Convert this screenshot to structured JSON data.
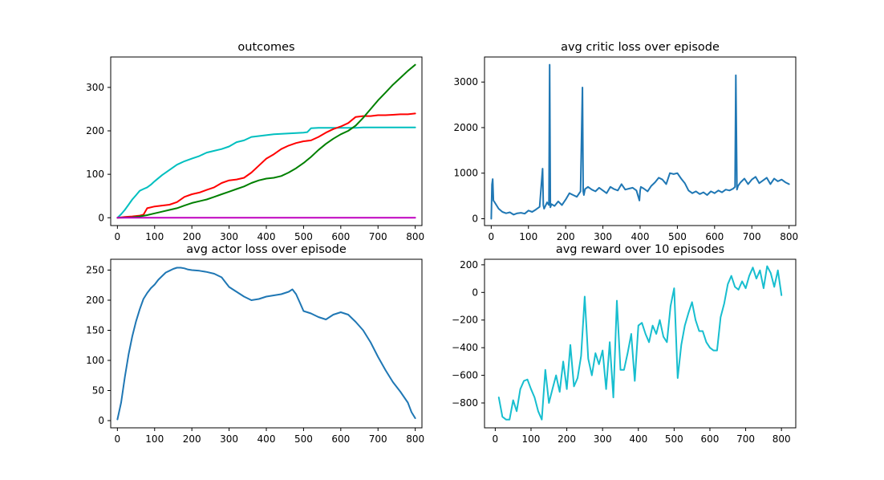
{
  "chart_data": [
    {
      "type": "line",
      "title": "outcomes",
      "xlim": [
        -18,
        818
      ],
      "ylim": [
        -18,
        370
      ],
      "xticks": [
        0,
        100,
        200,
        300,
        400,
        500,
        600,
        700,
        800
      ],
      "yticks": [
        0,
        100,
        200,
        300
      ],
      "series": [
        {
          "color": "#00bfbf",
          "x": [
            0,
            10,
            20,
            30,
            40,
            50,
            60,
            70,
            80,
            90,
            100,
            120,
            140,
            160,
            180,
            200,
            220,
            240,
            260,
            280,
            300,
            320,
            340,
            360,
            380,
            400,
            420,
            440,
            460,
            480,
            500,
            510,
            520,
            540,
            560,
            580,
            600,
            620,
            640,
            660,
            680,
            700,
            720,
            740,
            760,
            780,
            800
          ],
          "y": [
            0,
            8,
            18,
            30,
            42,
            52,
            62,
            66,
            70,
            76,
            84,
            98,
            110,
            122,
            130,
            136,
            142,
            150,
            154,
            158,
            164,
            174,
            178,
            186,
            188,
            190,
            192,
            193,
            194,
            195,
            196,
            197,
            206,
            207,
            207,
            207,
            207,
            207,
            207,
            208,
            208,
            208,
            208,
            208,
            208,
            208,
            208
          ]
        },
        {
          "color": "#ff0000",
          "x": [
            0,
            20,
            40,
            60,
            70,
            80,
            100,
            120,
            140,
            160,
            180,
            200,
            220,
            240,
            260,
            280,
            300,
            320,
            340,
            360,
            380,
            400,
            420,
            440,
            460,
            480,
            500,
            520,
            540,
            560,
            580,
            600,
            620,
            640,
            660,
            680,
            700,
            720,
            740,
            760,
            780,
            800
          ],
          "y": [
            0,
            2,
            3,
            5,
            7,
            22,
            26,
            28,
            30,
            36,
            48,
            54,
            58,
            64,
            70,
            80,
            86,
            88,
            92,
            104,
            120,
            136,
            146,
            158,
            166,
            172,
            176,
            178,
            186,
            196,
            204,
            210,
            218,
            232,
            234,
            234,
            236,
            236,
            237,
            238,
            238,
            240
          ]
        },
        {
          "color": "#008000",
          "x": [
            0,
            40,
            60,
            80,
            100,
            120,
            140,
            160,
            180,
            200,
            220,
            240,
            260,
            280,
            300,
            320,
            340,
            360,
            380,
            400,
            420,
            440,
            460,
            480,
            500,
            520,
            540,
            560,
            580,
            600,
            620,
            640,
            660,
            680,
            700,
            720,
            740,
            760,
            780,
            800
          ],
          "y": [
            0,
            1,
            3,
            6,
            10,
            14,
            18,
            22,
            28,
            34,
            38,
            42,
            48,
            54,
            60,
            66,
            72,
            80,
            86,
            90,
            92,
            96,
            104,
            114,
            126,
            140,
            156,
            170,
            182,
            192,
            200,
            212,
            230,
            250,
            270,
            288,
            306,
            322,
            338,
            352
          ]
        },
        {
          "color": "#bf00bf",
          "x": [
            0,
            800
          ],
          "y": [
            0,
            0
          ]
        }
      ]
    },
    {
      "type": "line",
      "title": "avg critic loss over episode",
      "xlim": [
        -18,
        818
      ],
      "ylim": [
        -150,
        3550
      ],
      "xticks": [
        0,
        100,
        200,
        300,
        400,
        500,
        600,
        700,
        800
      ],
      "yticks": [
        0,
        1000,
        2000,
        3000
      ],
      "series": [
        {
          "color": "#1f77b4",
          "x": [
            0,
            2,
            4,
            6,
            10,
            20,
            30,
            40,
            50,
            60,
            70,
            80,
            90,
            100,
            110,
            120,
            130,
            138,
            140,
            142,
            150,
            155,
            157,
            159,
            162,
            170,
            180,
            190,
            200,
            210,
            220,
            230,
            240,
            245,
            247,
            249,
            252,
            260,
            270,
            280,
            290,
            300,
            310,
            320,
            330,
            340,
            350,
            360,
            370,
            380,
            390,
            398,
            400,
            402,
            410,
            420,
            430,
            440,
            450,
            460,
            470,
            480,
            490,
            500,
            510,
            520,
            530,
            540,
            550,
            560,
            570,
            580,
            590,
            600,
            610,
            620,
            630,
            640,
            650,
            655,
            657,
            660,
            663,
            670,
            680,
            690,
            700,
            710,
            720,
            730,
            740,
            750,
            760,
            770,
            780,
            790,
            800
          ],
          "y": [
            0,
            750,
            870,
            400,
            350,
            220,
            150,
            120,
            140,
            90,
            120,
            130,
            110,
            180,
            150,
            200,
            260,
            1100,
            300,
            220,
            360,
            300,
            3380,
            250,
            320,
            280,
            380,
            300,
            420,
            560,
            520,
            480,
            600,
            2880,
            600,
            520,
            650,
            700,
            640,
            600,
            680,
            620,
            560,
            700,
            650,
            620,
            760,
            640,
            660,
            680,
            620,
            400,
            620,
            700,
            660,
            600,
            720,
            800,
            900,
            860,
            760,
            1000,
            980,
            1000,
            880,
            780,
            620,
            560,
            600,
            540,
            580,
            520,
            600,
            560,
            620,
            580,
            640,
            620,
            660,
            700,
            3150,
            640,
            720,
            800,
            880,
            760,
            860,
            920,
            780,
            840,
            900,
            760,
            880,
            820,
            860,
            800,
            760
          ]
        }
      ]
    },
    {
      "type": "line",
      "title": "avg actor loss over episode",
      "xlim": [
        -18,
        818
      ],
      "ylim": [
        -12,
        268
      ],
      "xticks": [
        0,
        100,
        200,
        300,
        400,
        500,
        600,
        700,
        800
      ],
      "yticks": [
        0,
        50,
        100,
        150,
        200,
        250
      ],
      "series": [
        {
          "color": "#1f77b4",
          "x": [
            0,
            10,
            20,
            30,
            40,
            50,
            60,
            70,
            80,
            90,
            100,
            110,
            120,
            130,
            140,
            150,
            160,
            170,
            180,
            190,
            200,
            220,
            240,
            260,
            280,
            290,
            300,
            310,
            320,
            340,
            360,
            380,
            400,
            420,
            440,
            460,
            470,
            480,
            490,
            500,
            510,
            520,
            540,
            560,
            580,
            600,
            620,
            640,
            660,
            680,
            700,
            720,
            740,
            760,
            780,
            790,
            800
          ],
          "y": [
            2,
            30,
            72,
            110,
            140,
            165,
            185,
            202,
            212,
            220,
            226,
            234,
            240,
            246,
            249,
            252,
            254,
            254,
            253,
            251,
            250,
            249,
            247,
            244,
            238,
            230,
            222,
            218,
            214,
            206,
            200,
            202,
            206,
            208,
            210,
            214,
            218,
            210,
            196,
            182,
            180,
            178,
            172,
            168,
            176,
            180,
            176,
            164,
            150,
            130,
            106,
            84,
            64,
            48,
            30,
            14,
            4
          ]
        }
      ]
    },
    {
      "type": "line",
      "title": "avg reward over 10 episodes",
      "xlim": [
        -30,
        840
      ],
      "ylim": [
        -980,
        240
      ],
      "xticks": [
        0,
        100,
        200,
        300,
        400,
        500,
        600,
        700,
        800
      ],
      "yticks": [
        -800,
        -600,
        -400,
        -200,
        0,
        200
      ],
      "series": [
        {
          "color": "#17becf",
          "x": [
            10,
            20,
            30,
            40,
            50,
            60,
            70,
            80,
            90,
            100,
            110,
            120,
            130,
            140,
            150,
            160,
            170,
            180,
            190,
            200,
            210,
            220,
            230,
            240,
            250,
            260,
            270,
            280,
            290,
            300,
            310,
            320,
            330,
            340,
            350,
            360,
            370,
            380,
            390,
            400,
            410,
            420,
            430,
            440,
            450,
            460,
            470,
            480,
            490,
            500,
            510,
            520,
            530,
            540,
            550,
            560,
            570,
            580,
            590,
            600,
            610,
            620,
            630,
            640,
            650,
            660,
            670,
            680,
            690,
            700,
            710,
            720,
            730,
            740,
            750,
            760,
            770,
            780,
            790,
            800
          ],
          "y": [
            -760,
            -900,
            -920,
            -920,
            -780,
            -860,
            -700,
            -640,
            -630,
            -700,
            -760,
            -860,
            -920,
            -560,
            -800,
            -700,
            -600,
            -720,
            -500,
            -700,
            -380,
            -680,
            -620,
            -460,
            -30,
            -480,
            -600,
            -440,
            -520,
            -420,
            -700,
            -360,
            -760,
            -60,
            -560,
            -560,
            -440,
            -300,
            -640,
            -240,
            -220,
            -300,
            -360,
            -240,
            -300,
            -200,
            -320,
            -360,
            -100,
            30,
            -620,
            -380,
            -240,
            -150,
            -70,
            -200,
            -280,
            -280,
            -360,
            -400,
            -420,
            -420,
            -180,
            -80,
            60,
            120,
            40,
            20,
            80,
            30,
            120,
            180,
            100,
            160,
            30,
            190,
            140,
            40,
            160,
            -20
          ]
        }
      ]
    }
  ]
}
